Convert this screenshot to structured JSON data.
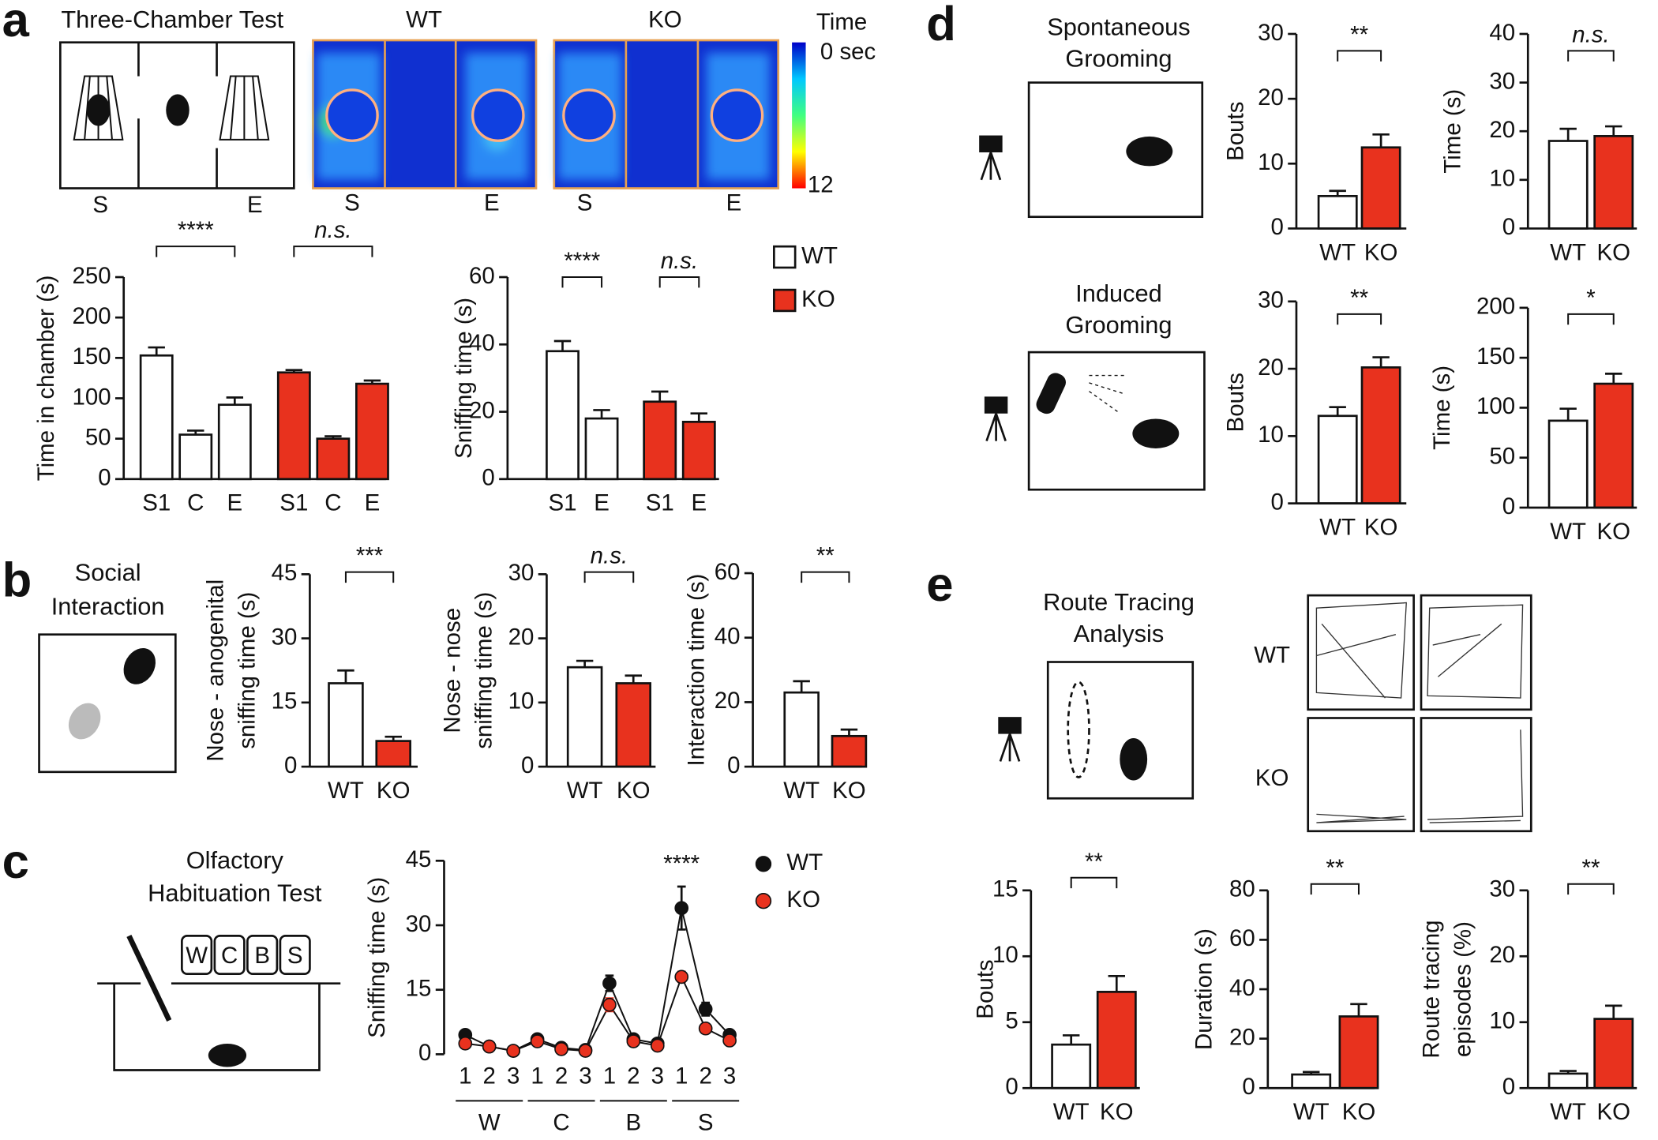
{
  "panels": [
    "a",
    "b",
    "c",
    "d",
    "e"
  ],
  "three_chamber": {
    "title": "Three-Chamber Test",
    "labels": [
      "S",
      "E"
    ]
  },
  "heatmap": {
    "groups": [
      "WT",
      "KO"
    ],
    "labels": [
      "S",
      "E",
      "S",
      "E"
    ],
    "scale_title": "Time",
    "scale_min": "0 sec",
    "scale_max": "12"
  },
  "social": [
    "Social",
    "Interaction"
  ],
  "olfactory": [
    "Olfactory",
    "Habituation Test"
  ],
  "jars": [
    "W",
    "C",
    "B",
    "S"
  ],
  "spontaneous": [
    "Spontaneous",
    "Grooming"
  ],
  "induced": [
    "Induced",
    "Grooming"
  ],
  "route": [
    "Route Tracing",
    "Analysis"
  ],
  "route_groups": [
    "WT",
    "KO"
  ],
  "chart_data": [
    {
      "type": "bar",
      "ylabel": [
        "Time in chamber (s)"
      ],
      "categories": [
        "S1",
        "C",
        "E",
        "S1",
        "C",
        "E"
      ],
      "values": [
        153,
        55,
        92,
        132,
        50,
        118
      ],
      "errors": [
        10,
        5,
        9,
        3,
        3,
        4
      ],
      "colors": [
        "#ffffff",
        "#ffffff",
        "#ffffff",
        "#e8321e",
        "#e8321e",
        "#e8321e"
      ],
      "ylim": [
        0,
        250
      ],
      "yticks": [
        0,
        50,
        100,
        150,
        200,
        250
      ],
      "annotations": [
        "****",
        "n.s."
      ]
    },
    {
      "type": "bar",
      "ylabel": [
        "Sniffing time (s)"
      ],
      "categories": [
        "S1",
        "E",
        "S1",
        "E"
      ],
      "values": [
        38,
        18,
        23,
        17
      ],
      "errors": [
        3,
        2.5,
        3,
        2.5
      ],
      "colors": [
        "#ffffff",
        "#ffffff",
        "#e8321e",
        "#e8321e"
      ],
      "ylim": [
        0,
        60
      ],
      "yticks": [
        0,
        20,
        40,
        60
      ],
      "annotations": [
        "****",
        "n.s."
      ],
      "legend": [
        {
          "name": "WT",
          "color": "#ffffff"
        },
        {
          "name": "KO",
          "color": "#e8321e"
        }
      ]
    },
    {
      "type": "bar",
      "ylabel": [
        "Nose - anogenital",
        "sniffing time (s)"
      ],
      "categories": [
        "WT",
        "KO"
      ],
      "values": [
        19.5,
        6
      ],
      "errors": [
        3,
        1
      ],
      "colors": [
        "#ffffff",
        "#e8321e"
      ],
      "ylim": [
        0,
        45
      ],
      "yticks": [
        0,
        15,
        30,
        45
      ],
      "annotations": [
        "***"
      ]
    },
    {
      "type": "bar",
      "ylabel": [
        "Nose - nose",
        "sniffing time (s)"
      ],
      "categories": [
        "WT",
        "KO"
      ],
      "values": [
        15.5,
        13
      ],
      "errors": [
        1,
        1.2
      ],
      "colors": [
        "#ffffff",
        "#e8321e"
      ],
      "ylim": [
        0,
        30
      ],
      "yticks": [
        0,
        10,
        20,
        30
      ],
      "annotations": [
        "n.s."
      ]
    },
    {
      "type": "bar",
      "ylabel": [
        "Interaction time (s)"
      ],
      "categories": [
        "WT",
        "KO"
      ],
      "values": [
        23,
        9.5
      ],
      "errors": [
        3.5,
        2
      ],
      "colors": [
        "#ffffff",
        "#e8321e"
      ],
      "ylim": [
        0,
        60
      ],
      "yticks": [
        0,
        20,
        40,
        60
      ],
      "annotations": [
        "**"
      ]
    },
    {
      "type": "line",
      "ylabel": [
        "Sniffing time (s)"
      ],
      "categories": [
        "1",
        "2",
        "3",
        "1",
        "2",
        "3",
        "1",
        "2",
        "3",
        "1",
        "2",
        "3"
      ],
      "groups": [
        "W",
        "C",
        "B",
        "S"
      ],
      "series": [
        {
          "name": "WT",
          "color": "#111111",
          "values": [
            4.5,
            1.8,
            0.8,
            3.5,
            1.5,
            1,
            16.5,
            3.5,
            2.5,
            34,
            10.5,
            4.5
          ],
          "errors": [
            0.5,
            0.3,
            0.2,
            0.5,
            0.3,
            0.2,
            1.8,
            0.6,
            0.5,
            5,
            1.5,
            0.8
          ]
        },
        {
          "name": "KO",
          "color": "#e8321e",
          "values": [
            2.5,
            1.8,
            0.8,
            3,
            1.2,
            0.8,
            11.5,
            3,
            2,
            18,
            6,
            3.2
          ],
          "errors": [
            0.4,
            0.3,
            0.2,
            0.4,
            0.3,
            0.2,
            1.5,
            0.5,
            0.4,
            1.2,
            1,
            0.6
          ]
        }
      ],
      "ylim": [
        0,
        45
      ],
      "yticks": [
        0,
        15,
        30,
        45
      ],
      "annotations": [
        "****"
      ]
    },
    {
      "type": "bar",
      "ylabel": [
        "Bouts"
      ],
      "categories": [
        "WT",
        "KO"
      ],
      "values": [
        5,
        12.5
      ],
      "errors": [
        0.8,
        2
      ],
      "colors": [
        "#ffffff",
        "#e8321e"
      ],
      "ylim": [
        0,
        30
      ],
      "yticks": [
        0,
        10,
        20,
        30
      ],
      "annotations": [
        "**"
      ]
    },
    {
      "type": "bar",
      "ylabel": [
        "Time (s)"
      ],
      "categories": [
        "WT",
        "KO"
      ],
      "values": [
        18,
        19
      ],
      "errors": [
        2.5,
        2
      ],
      "colors": [
        "#ffffff",
        "#e8321e"
      ],
      "ylim": [
        0,
        40
      ],
      "yticks": [
        0,
        10,
        20,
        30,
        40
      ],
      "annotations": [
        "n.s."
      ]
    },
    {
      "type": "bar",
      "ylabel": [
        "Bouts"
      ],
      "categories": [
        "WT",
        "KO"
      ],
      "values": [
        13,
        20.2
      ],
      "errors": [
        1.3,
        1.5
      ],
      "colors": [
        "#ffffff",
        "#e8321e"
      ],
      "ylim": [
        0,
        30
      ],
      "yticks": [
        0,
        10,
        20,
        30
      ],
      "annotations": [
        "**"
      ]
    },
    {
      "type": "bar",
      "ylabel": [
        "Time (s)"
      ],
      "categories": [
        "WT",
        "KO"
      ],
      "values": [
        87,
        124
      ],
      "errors": [
        12,
        10
      ],
      "colors": [
        "#ffffff",
        "#e8321e"
      ],
      "ylim": [
        0,
        200
      ],
      "yticks": [
        0,
        50,
        100,
        150,
        200
      ],
      "annotations": [
        "*"
      ]
    },
    {
      "type": "bar",
      "ylabel": [
        "Bouts"
      ],
      "categories": [
        "WT",
        "KO"
      ],
      "values": [
        3.3,
        7.3
      ],
      "errors": [
        0.7,
        1.2
      ],
      "colors": [
        "#ffffff",
        "#e8321e"
      ],
      "ylim": [
        0,
        15
      ],
      "yticks": [
        0,
        5,
        10,
        15
      ],
      "annotations": [
        "**"
      ]
    },
    {
      "type": "bar",
      "ylabel": [
        "Duration (s)"
      ],
      "categories": [
        "WT",
        "KO"
      ],
      "values": [
        5.5,
        29
      ],
      "errors": [
        1,
        5
      ],
      "colors": [
        "#ffffff",
        "#e8321e"
      ],
      "ylim": [
        0,
        80
      ],
      "yticks": [
        0,
        20,
        40,
        60,
        80
      ],
      "annotations": [
        "**"
      ]
    },
    {
      "type": "bar",
      "ylabel": [
        "Route tracing",
        "episodes (%)"
      ],
      "categories": [
        "WT",
        "KO"
      ],
      "values": [
        2.2,
        10.5
      ],
      "errors": [
        0.4,
        2
      ],
      "colors": [
        "#ffffff",
        "#e8321e"
      ],
      "ylim": [
        0,
        30
      ],
      "yticks": [
        0,
        10,
        20,
        30
      ],
      "annotations": [
        "**"
      ]
    }
  ]
}
